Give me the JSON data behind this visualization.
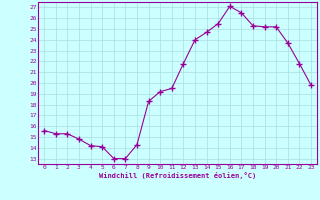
{
  "x": [
    0,
    1,
    2,
    3,
    4,
    5,
    6,
    7,
    8,
    9,
    10,
    11,
    12,
    13,
    14,
    15,
    16,
    17,
    18,
    19,
    20,
    21,
    22,
    23
  ],
  "y": [
    15.6,
    15.3,
    15.3,
    14.8,
    14.2,
    14.1,
    13.0,
    13.0,
    14.3,
    18.3,
    19.2,
    19.5,
    21.8,
    24.0,
    24.7,
    25.5,
    27.1,
    26.5,
    25.3,
    25.2,
    25.2,
    23.7,
    21.8,
    19.8
  ],
  "xlabel": "Windchill (Refroidissement éolien,°C)",
  "line_color": "#990099",
  "bg_color": "#ccffff",
  "grid_color": "#aadddd",
  "text_color": "#990099",
  "yticks": [
    13,
    14,
    15,
    16,
    17,
    18,
    19,
    20,
    21,
    22,
    23,
    24,
    25,
    26,
    27
  ],
  "xticks": [
    0,
    1,
    2,
    3,
    4,
    5,
    6,
    7,
    8,
    9,
    10,
    11,
    12,
    13,
    14,
    15,
    16,
    17,
    18,
    19,
    20,
    21,
    22,
    23
  ]
}
